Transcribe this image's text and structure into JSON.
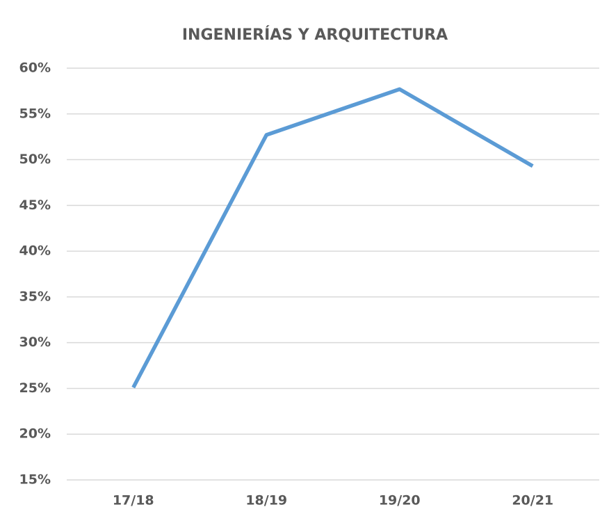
{
  "chart_data": {
    "type": "line",
    "title": "INGENIERÍAS Y ARQUITECTURA",
    "categories": [
      "17/18",
      "18/19",
      "19/20",
      "20/21"
    ],
    "series": [
      {
        "name": "Ingenierías y Arquitectura",
        "color": "#5b9bd5",
        "values": [
          25.1,
          52.7,
          57.7,
          49.3
        ]
      }
    ],
    "ylim": [
      15,
      60
    ],
    "yticks": [
      {
        "value": 15,
        "label": "15%"
      },
      {
        "value": 20,
        "label": "20%"
      },
      {
        "value": 25,
        "label": "25%"
      },
      {
        "value": 30,
        "label": "30%"
      },
      {
        "value": 35,
        "label": "35%"
      },
      {
        "value": 40,
        "label": "40%"
      },
      {
        "value": 45,
        "label": "45%"
      },
      {
        "value": 50,
        "label": "50%"
      },
      {
        "value": 55,
        "label": "55%"
      },
      {
        "value": 60,
        "label": "60%"
      }
    ],
    "grid": true
  }
}
